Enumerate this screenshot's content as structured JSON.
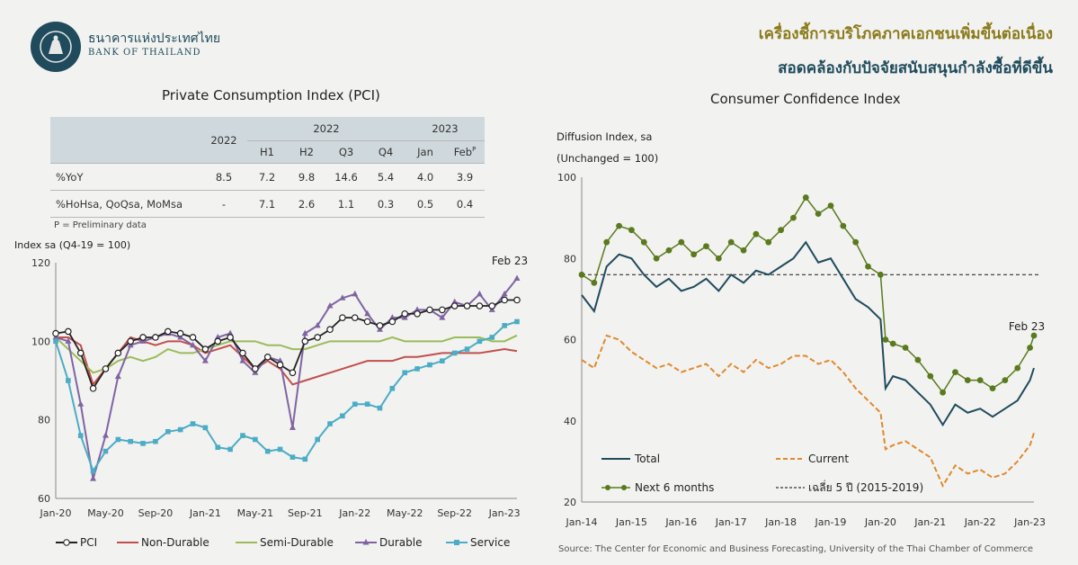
{
  "header": {
    "bank_name_th": "ธนาคารแห่งประเทศไทย",
    "bank_name_en": "BANK OF THAILAND",
    "headline_line1": "เครื่องชี้การบริโภคภาคเอกชนเพิ่มขึ้นต่อเนื่อง",
    "headline_line2": "สอดคล้องกับปัจจัยสนับสนุนกำลังซื้อที่ดีขึ้น"
  },
  "colors": {
    "pci": "#222222",
    "non_durable": "#c0504d",
    "semi_durable": "#9bbb59",
    "durable": "#8064a2",
    "service": "#4bacc6",
    "total": "#1f4b5c",
    "current": "#e0892d",
    "next6": "#5a7a1e",
    "avg": "#333333"
  },
  "pci_table": {
    "title": "Private Consumption Index (PCI)",
    "head_year_2022": "2022",
    "head_group_2022": "2022",
    "head_group_2023": "2023",
    "sub_headers": [
      "H1",
      "H2",
      "Q3",
      "Q4",
      "Jan",
      "Feb"
    ],
    "feb_sup": "P",
    "rows": [
      {
        "label": "%YoY",
        "values": [
          "8.5",
          "7.2",
          "9.8",
          "14.6",
          "5.4",
          "4.0",
          "3.9"
        ]
      },
      {
        "label": "%HoHsa, QoQsa, MoMsa",
        "values": [
          "-",
          "7.1",
          "2.6",
          "1.1",
          "0.3",
          "0.5",
          "0.4"
        ]
      }
    ],
    "note": "P = Preliminary data"
  },
  "source": "Source: The Center for Economic and Business Forecasting, University of the Thai Chamber of Commerce",
  "chart_data": [
    {
      "type": "line",
      "title": "",
      "ylabel": "Index sa (Q4-19 = 100)",
      "xlabel": "",
      "ylim": [
        60,
        120
      ],
      "yticks": [
        60,
        80,
        100,
        120
      ],
      "x_tick_labels": [
        "Jan-20",
        "May-20",
        "Sep-20",
        "Jan-21",
        "May-21",
        "Sep-21",
        "Jan-22",
        "May-22",
        "Sep-22",
        "Jan-23"
      ],
      "annotation": "Feb 23",
      "legend_position": "bottom",
      "x": [
        "Jan-20",
        "Feb-20",
        "Mar-20",
        "Apr-20",
        "May-20",
        "Jun-20",
        "Jul-20",
        "Aug-20",
        "Sep-20",
        "Oct-20",
        "Nov-20",
        "Dec-20",
        "Jan-21",
        "Feb-21",
        "Mar-21",
        "Apr-21",
        "May-21",
        "Jun-21",
        "Jul-21",
        "Aug-21",
        "Sep-21",
        "Oct-21",
        "Nov-21",
        "Dec-21",
        "Jan-22",
        "Feb-22",
        "Mar-22",
        "Apr-22",
        "May-22",
        "Jun-22",
        "Jul-22",
        "Aug-22",
        "Sep-22",
        "Oct-22",
        "Nov-22",
        "Dec-22",
        "Jan-23",
        "Feb-23"
      ],
      "series": [
        {
          "name": "PCI",
          "values": [
            102,
            102.5,
            97,
            88,
            93,
            97,
            100,
            101,
            101,
            102.5,
            102,
            101,
            98,
            100,
            101,
            97,
            93,
            96,
            94,
            92,
            100,
            101,
            103,
            106,
            106,
            105,
            104,
            105,
            107,
            107,
            108,
            108,
            109,
            109,
            109,
            109,
            110.5,
            110.5
          ]
        },
        {
          "name": "Non-Durable",
          "values": [
            101,
            101,
            99,
            89,
            93,
            97,
            101,
            100,
            99,
            100,
            100,
            99,
            97,
            98,
            99,
            96,
            93,
            95,
            93,
            89,
            90,
            91,
            92,
            93,
            94,
            95,
            95,
            95,
            96,
            96,
            96.5,
            97,
            97,
            97,
            97,
            97.5,
            98,
            97.5
          ]
        },
        {
          "name": "Semi-Durable",
          "values": [
            101,
            98,
            95,
            92,
            93,
            95,
            96,
            95,
            96,
            98,
            97,
            97,
            98,
            99,
            100,
            100,
            100,
            99,
            99,
            98,
            98,
            99,
            100,
            100,
            100,
            100,
            100,
            101,
            100,
            100,
            100,
            100,
            101,
            101,
            101,
            100,
            100,
            101.5
          ]
        },
        {
          "name": "Durable",
          "values": [
            101,
            100,
            84,
            65,
            76,
            91,
            99,
            100,
            101,
            102,
            101,
            99,
            95,
            101,
            102,
            95,
            92,
            96,
            95,
            78,
            102,
            104,
            109,
            111,
            112,
            107,
            103,
            106,
            106,
            108,
            108,
            106,
            110,
            109,
            112,
            108,
            112,
            116
          ]
        },
        {
          "name": "Service",
          "values": [
            100,
            90,
            76,
            67,
            72,
            75,
            74.5,
            74,
            74.5,
            77,
            77.5,
            79,
            78,
            73,
            72.5,
            76,
            75,
            72,
            72.5,
            70.5,
            70,
            75,
            79,
            81,
            84,
            84,
            83,
            88,
            92,
            93,
            94,
            95,
            97,
            98,
            100,
            101,
            104,
            105
          ]
        }
      ]
    },
    {
      "type": "line",
      "title": "Consumer Confidence Index",
      "ylabel": "Diffusion Index, sa",
      "ylabel2": "(Unchanged = 100)",
      "xlabel": "",
      "ylim": [
        20,
        100
      ],
      "yticks": [
        20,
        40,
        60,
        80,
        100
      ],
      "x_tick_labels": [
        "Jan-14",
        "Jan-15",
        "Jan-16",
        "Jan-17",
        "Jan-18",
        "Jan-19",
        "Jan-20",
        "Jan-21",
        "Jan-22",
        "Jan-23"
      ],
      "annotation": "Feb 23",
      "legend_position": "bottom",
      "x_years": [
        2014.0,
        2014.25,
        2014.5,
        2014.75,
        2015.0,
        2015.25,
        2015.5,
        2015.75,
        2016.0,
        2016.25,
        2016.5,
        2016.75,
        2017.0,
        2017.25,
        2017.5,
        2017.75,
        2018.0,
        2018.25,
        2018.5,
        2018.75,
        2019.0,
        2019.25,
        2019.5,
        2019.75,
        2020.0,
        2020.1,
        2020.25,
        2020.5,
        2020.75,
        2021.0,
        2021.25,
        2021.5,
        2021.75,
        2022.0,
        2022.25,
        2022.5,
        2022.75,
        2023.0,
        2023.08
      ],
      "series": [
        {
          "name": "Total",
          "values": [
            71,
            67,
            78,
            81,
            80,
            76,
            73,
            75,
            72,
            73,
            75,
            72,
            76,
            74,
            77,
            76,
            78,
            80,
            84,
            79,
            80,
            75,
            70,
            68,
            65,
            48,
            51,
            50,
            47,
            44,
            39,
            44,
            42,
            43,
            41,
            43,
            45,
            50,
            53
          ]
        },
        {
          "name": "Current",
          "values": [
            55,
            53,
            61,
            60,
            57,
            55,
            53,
            54,
            52,
            53,
            54,
            51,
            54,
            52,
            55,
            53,
            54,
            56,
            56,
            54,
            55,
            52,
            48,
            45,
            42,
            33,
            34,
            35,
            33,
            31,
            24,
            29,
            27,
            28,
            26,
            27,
            30,
            34,
            37
          ]
        },
        {
          "name": "Next 6 months",
          "values": [
            76,
            74,
            84,
            88,
            87,
            84,
            80,
            82,
            84,
            81,
            83,
            80,
            84,
            82,
            86,
            84,
            87,
            90,
            95,
            91,
            93,
            88,
            84,
            78,
            76,
            60,
            59,
            58,
            55,
            51,
            47,
            52,
            50,
            50,
            48,
            50,
            53,
            58,
            61
          ]
        },
        {
          "name": "เฉลี่ย 5 ปี (2015-2019)",
          "values": [
            76,
            76
          ]
        }
      ]
    }
  ]
}
